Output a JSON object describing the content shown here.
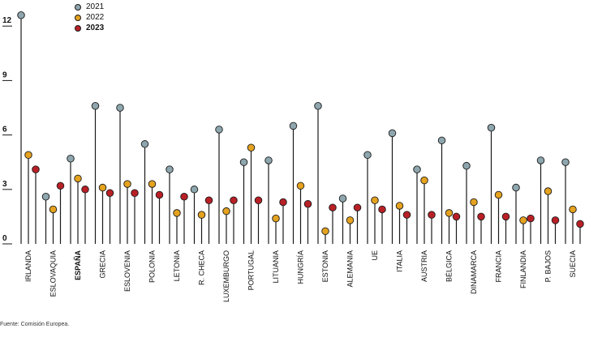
{
  "source_note": "Fuente: Comisión Europea.",
  "colors": {
    "2021": "#8ea6ae",
    "2022": "#e4a21f",
    "2023": "#b82026",
    "stem": "#1a1a1a"
  },
  "chart_data": {
    "type": "lollipop",
    "title": "",
    "xlabel": "",
    "ylabel": "",
    "ylim": [
      0,
      13
    ],
    "yticks": [
      0,
      3,
      6,
      9,
      12
    ],
    "ytick_labels": [
      "0",
      "3",
      "6",
      "9",
      "12"
    ],
    "legend_position": "top-left",
    "categories": [
      "IRLANDA",
      "ESLOVAQUIA",
      "ESPAÑA",
      "GRECIA",
      "ESLOVENIA",
      "POLONIA",
      "LETONIA",
      "R. CHECA",
      "LUXEMBURGO",
      "PORTUGAL",
      "LITUANIA",
      "HUNGRÍA",
      "ESTONIA",
      "ALEMANIA",
      "UE",
      "ITALIA",
      "AUSTRIA",
      "BÉLGICA",
      "DINAMARCA",
      "FRANCIA",
      "FINLANDIA",
      "P. BAJOS",
      "SUECIA"
    ],
    "highlight": [
      "ESPAÑA"
    ],
    "series": [
      {
        "name": "2021",
        "label_bold": false,
        "values": [
          12.6,
          2.6,
          4.7,
          7.6,
          7.5,
          5.5,
          4.1,
          3.0,
          6.3,
          4.5,
          4.6,
          6.5,
          7.6,
          2.5,
          4.9,
          6.1,
          4.1,
          5.7,
          4.3,
          6.4,
          3.1,
          4.6,
          4.5
        ]
      },
      {
        "name": "2022",
        "label_bold": false,
        "values": [
          4.9,
          1.9,
          3.6,
          3.1,
          3.3,
          3.3,
          1.7,
          1.6,
          1.8,
          5.3,
          1.4,
          3.2,
          0.7,
          1.3,
          2.4,
          2.1,
          3.5,
          1.7,
          2.3,
          2.7,
          1.3,
          2.9,
          1.9
        ]
      },
      {
        "name": "2023",
        "label_bold": true,
        "values": [
          4.1,
          3.2,
          3.0,
          2.8,
          2.8,
          2.7,
          2.6,
          2.4,
          2.4,
          2.4,
          2.3,
          2.2,
          2.0,
          2.0,
          1.9,
          1.6,
          1.6,
          1.5,
          1.5,
          1.5,
          1.4,
          1.3,
          1.1
        ]
      }
    ]
  }
}
